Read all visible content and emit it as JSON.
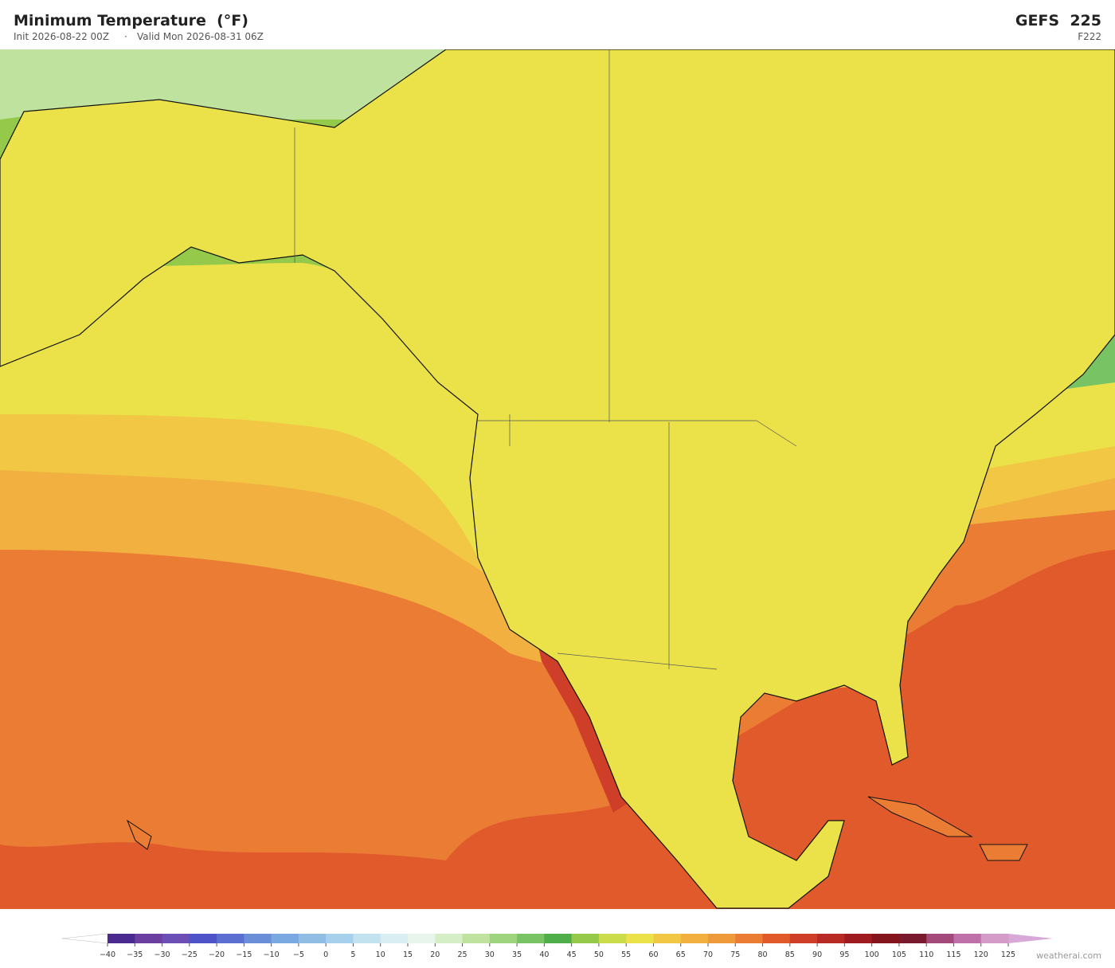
{
  "header": {
    "title": "Minimum Temperature  (°F)",
    "init": "Init 2026-08-22 00Z",
    "separator": "·",
    "valid": "Valid Mon 2026-08-31 06Z",
    "model": "GEFS  225",
    "forecast_hour": "F222"
  },
  "colorbar": {
    "ticks": [
      {
        "value": -40,
        "label": "−40"
      },
      {
        "value": -35,
        "label": "−35"
      },
      {
        "value": -30,
        "label": "−30"
      },
      {
        "value": -25,
        "label": "−25"
      },
      {
        "value": -20,
        "label": "−20"
      },
      {
        "value": -15,
        "label": "−15"
      },
      {
        "value": -10,
        "label": "−10"
      },
      {
        "value": -5,
        "label": "−5"
      },
      0,
      5,
      10,
      15,
      20,
      25,
      30,
      35,
      40,
      45,
      50,
      55,
      60,
      65,
      70,
      75,
      80,
      85,
      90,
      95,
      100,
      105,
      110,
      115,
      120,
      125
    ],
    "colors": [
      "#4b2a8f",
      "#6a3fa0",
      "#6b4fb5",
      "#4e54c8",
      "#5a6fd0",
      "#6a8fd8",
      "#7aa8e0",
      "#8fbde4",
      "#a7d0ec",
      "#c2e2f0",
      "#d8eef2",
      "#e8f5ec",
      "#d6eec6",
      "#bfe39e",
      "#9fd47e",
      "#78c464",
      "#4fae4a",
      "#95c94a",
      "#cbdc4a",
      "#ebe24a",
      "#f2c744",
      "#f2b040",
      "#ef9a3a",
      "#ea7c34",
      "#e05a2c",
      "#cf3e28",
      "#b82a24",
      "#9e1c20",
      "#85151c",
      "#7a1a2e",
      "#a34a7a",
      "#c070a8",
      "#d49ac8"
    ],
    "under_color": "#ffffff",
    "over_color": "#d8a8d8"
  },
  "footer": {
    "credit": "weatherai.com"
  }
}
